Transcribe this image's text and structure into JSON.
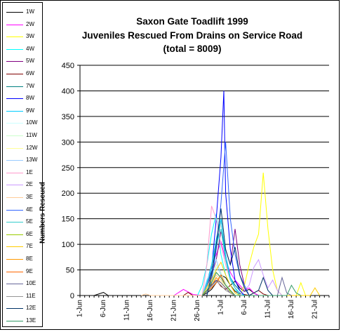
{
  "chart_data": {
    "type": "line",
    "title_lines": [
      "Saxon Gate Toadlift 1999",
      "Juveniles Rescued  From Drains on Service Road",
      "(total = 8009)"
    ],
    "xlabel": "",
    "ylabel": "Numbers Rescued",
    "ylim": [
      0,
      450
    ],
    "yticks": [
      0,
      50,
      100,
      150,
      200,
      250,
      300,
      350,
      400,
      450
    ],
    "x_tick_labels": [
      "1-Jun",
      "6-Jun",
      "11-Jun",
      "16-Jun",
      "21-Jun",
      "26-Jun",
      "1-Jul",
      "6-Jul",
      "11-Jul",
      "16-Jul",
      "21-Jul"
    ],
    "x_range_days": [
      0,
      53
    ],
    "grid": "horizontal",
    "legend_position": "left",
    "series": [
      {
        "name": "1W",
        "color": "#000000",
        "points": [
          [
            0,
            0
          ],
          [
            3,
            0
          ],
          [
            5,
            6
          ],
          [
            6,
            0
          ],
          [
            26,
            0
          ],
          [
            27,
            5
          ],
          [
            28,
            12
          ],
          [
            29,
            25
          ],
          [
            30,
            40
          ],
          [
            31,
            35
          ],
          [
            32,
            20
          ],
          [
            33,
            28
          ],
          [
            34,
            15
          ],
          [
            35,
            8
          ],
          [
            36,
            12
          ],
          [
            37,
            5
          ],
          [
            38,
            0
          ]
        ]
      },
      {
        "name": "2W",
        "color": "#ff00ff",
        "points": [
          [
            20,
            0
          ],
          [
            22,
            12
          ],
          [
            24,
            2
          ],
          [
            26,
            0
          ],
          [
            27,
            25
          ],
          [
            28,
            60
          ],
          [
            29,
            80
          ],
          [
            30,
            105
          ],
          [
            31,
            70
          ],
          [
            32,
            45
          ],
          [
            33,
            30
          ],
          [
            34,
            20
          ],
          [
            35,
            10
          ],
          [
            36,
            15
          ],
          [
            37,
            5
          ],
          [
            38,
            0
          ]
        ]
      },
      {
        "name": "3W",
        "color": "#ffff00",
        "points": [
          [
            34,
            0
          ],
          [
            35,
            20
          ],
          [
            36,
            60
          ],
          [
            37,
            95
          ],
          [
            38,
            120
          ],
          [
            39,
            240
          ],
          [
            40,
            130
          ],
          [
            41,
            50
          ],
          [
            42,
            10
          ],
          [
            43,
            0
          ],
          [
            46,
            0
          ],
          [
            47,
            25
          ],
          [
            48,
            0
          ]
        ]
      },
      {
        "name": "4W",
        "color": "#00ffff",
        "points": [
          [
            25,
            0
          ],
          [
            26,
            20
          ],
          [
            27,
            60
          ],
          [
            28,
            120
          ],
          [
            29,
            160
          ],
          [
            30,
            80
          ],
          [
            31,
            40
          ],
          [
            32,
            20
          ],
          [
            33,
            10
          ],
          [
            34,
            0
          ]
        ]
      },
      {
        "name": "5W",
        "color": "#800080",
        "points": [
          [
            26,
            0
          ],
          [
            27,
            15
          ],
          [
            28,
            40
          ],
          [
            29,
            70
          ],
          [
            30,
            125
          ],
          [
            31,
            90
          ],
          [
            32,
            60
          ],
          [
            33,
            130
          ],
          [
            34,
            60
          ],
          [
            35,
            20
          ],
          [
            36,
            0
          ]
        ]
      },
      {
        "name": "6W",
        "color": "#800000",
        "points": [
          [
            22,
            0
          ],
          [
            23,
            6
          ],
          [
            24,
            0
          ],
          [
            26,
            0
          ],
          [
            27,
            10
          ],
          [
            28,
            22
          ],
          [
            29,
            30
          ],
          [
            30,
            18
          ],
          [
            31,
            12
          ],
          [
            32,
            20
          ],
          [
            33,
            8
          ],
          [
            34,
            4
          ],
          [
            36,
            0
          ],
          [
            38,
            10
          ],
          [
            39,
            3
          ],
          [
            40,
            0
          ]
        ]
      },
      {
        "name": "7W",
        "color": "#008080",
        "points": [
          [
            26,
            0
          ],
          [
            27,
            20
          ],
          [
            28,
            45
          ],
          [
            29,
            90
          ],
          [
            30,
            150
          ],
          [
            31,
            70
          ],
          [
            32,
            35
          ],
          [
            33,
            20
          ],
          [
            34,
            10
          ],
          [
            35,
            0
          ]
        ]
      },
      {
        "name": "8W",
        "color": "#0000ff",
        "points": [
          [
            26,
            0
          ],
          [
            27,
            20
          ],
          [
            28,
            50
          ],
          [
            29,
            150
          ],
          [
            30,
            270
          ],
          [
            30.6,
            400
          ],
          [
            31,
            200
          ],
          [
            32,
            90
          ],
          [
            33,
            30
          ],
          [
            34,
            10
          ],
          [
            35,
            0
          ]
        ]
      },
      {
        "name": "9W",
        "color": "#00ccff",
        "points": [
          [
            26,
            0
          ],
          [
            27,
            25
          ],
          [
            28,
            60
          ],
          [
            29,
            110
          ],
          [
            30,
            150
          ],
          [
            31,
            80
          ],
          [
            32,
            35
          ],
          [
            33,
            15
          ],
          [
            34,
            5
          ],
          [
            35,
            0
          ]
        ]
      },
      {
        "name": "10W",
        "color": "#ccffff",
        "points": [
          [
            26,
            0
          ],
          [
            27,
            10
          ],
          [
            28,
            30
          ],
          [
            29,
            55
          ],
          [
            30,
            40
          ],
          [
            31,
            20
          ],
          [
            32,
            10
          ],
          [
            33,
            0
          ]
        ]
      },
      {
        "name": "11W",
        "color": "#ccffcc",
        "points": [
          [
            26,
            0
          ],
          [
            27,
            15
          ],
          [
            28,
            35
          ],
          [
            29,
            60
          ],
          [
            30,
            45
          ],
          [
            31,
            25
          ],
          [
            32,
            10
          ],
          [
            33,
            0
          ]
        ]
      },
      {
        "name": "12W",
        "color": "#ffff99",
        "points": [
          [
            26,
            0
          ],
          [
            27,
            10
          ],
          [
            28,
            20
          ],
          [
            29,
            40
          ],
          [
            30,
            30
          ],
          [
            31,
            15
          ],
          [
            32,
            5
          ],
          [
            33,
            0
          ]
        ]
      },
      {
        "name": "13W",
        "color": "#99ccff",
        "points": [
          [
            26,
            0
          ],
          [
            27,
            30
          ],
          [
            28,
            50
          ],
          [
            29,
            70
          ],
          [
            30,
            40
          ],
          [
            31,
            20
          ],
          [
            32,
            10
          ],
          [
            33,
            0
          ]
        ]
      },
      {
        "name": "1E",
        "color": "#ff99cc",
        "points": [
          [
            26,
            0
          ],
          [
            27,
            60
          ],
          [
            28,
            175
          ],
          [
            29,
            150
          ],
          [
            30,
            100
          ],
          [
            31,
            60
          ],
          [
            32,
            30
          ],
          [
            33,
            15
          ],
          [
            34,
            0
          ]
        ]
      },
      {
        "name": "2E",
        "color": "#cc99ff",
        "points": [
          [
            34,
            0
          ],
          [
            36,
            20
          ],
          [
            37,
            55
          ],
          [
            38,
            70
          ],
          [
            39,
            40
          ],
          [
            40,
            15
          ],
          [
            41,
            30
          ],
          [
            42,
            10
          ],
          [
            43,
            0
          ]
        ]
      },
      {
        "name": "3E",
        "color": "#ffcc99",
        "points": [
          [
            13,
            0
          ],
          [
            14,
            3
          ],
          [
            15,
            0
          ],
          [
            26,
            0
          ],
          [
            27,
            10
          ],
          [
            28,
            25
          ],
          [
            29,
            40
          ],
          [
            30,
            30
          ],
          [
            31,
            20
          ],
          [
            32,
            10
          ],
          [
            33,
            0
          ]
        ]
      },
      {
        "name": "4E",
        "color": "#3366ff",
        "points": [
          [
            27,
            0
          ],
          [
            28,
            30
          ],
          [
            29,
            90
          ],
          [
            30,
            180
          ],
          [
            31,
            300
          ],
          [
            32,
            150
          ],
          [
            33,
            80
          ],
          [
            34,
            40
          ],
          [
            35,
            20
          ],
          [
            36,
            0
          ]
        ]
      },
      {
        "name": "5E",
        "color": "#33cccc",
        "points": [
          [
            26,
            0
          ],
          [
            27,
            20
          ],
          [
            28,
            55
          ],
          [
            29,
            100
          ],
          [
            30,
            130
          ],
          [
            31,
            70
          ],
          [
            32,
            30
          ],
          [
            33,
            15
          ],
          [
            34,
            0
          ]
        ]
      },
      {
        "name": "6E",
        "color": "#99cc00",
        "points": [
          [
            26,
            0
          ],
          [
            27,
            10
          ],
          [
            28,
            25
          ],
          [
            29,
            45
          ],
          [
            30,
            35
          ],
          [
            31,
            20
          ],
          [
            32,
            8
          ],
          [
            33,
            0
          ]
        ]
      },
      {
        "name": "7E",
        "color": "#ffcc00",
        "points": [
          [
            26,
            0
          ],
          [
            27,
            15
          ],
          [
            28,
            30
          ],
          [
            29,
            50
          ],
          [
            30,
            65
          ],
          [
            31,
            40
          ],
          [
            32,
            20
          ],
          [
            33,
            5
          ],
          [
            34,
            0
          ],
          [
            49,
            0
          ],
          [
            50,
            15
          ],
          [
            51,
            0
          ]
        ]
      },
      {
        "name": "8E",
        "color": "#ff9900",
        "points": [
          [
            26,
            0
          ],
          [
            27,
            10
          ],
          [
            28,
            20
          ],
          [
            29,
            35
          ],
          [
            30,
            25
          ],
          [
            31,
            15
          ],
          [
            32,
            5
          ],
          [
            33,
            0
          ]
        ]
      },
      {
        "name": "9E",
        "color": "#ff6600",
        "points": [
          [
            26,
            0
          ],
          [
            27,
            8
          ],
          [
            28,
            15
          ],
          [
            29,
            25
          ],
          [
            30,
            40
          ],
          [
            31,
            20
          ],
          [
            32,
            10
          ],
          [
            33,
            0
          ]
        ]
      },
      {
        "name": "10E",
        "color": "#666699",
        "points": [
          [
            26,
            0
          ],
          [
            27,
            10
          ],
          [
            28,
            20
          ],
          [
            29,
            30
          ],
          [
            30,
            25
          ],
          [
            31,
            15
          ],
          [
            32,
            5
          ],
          [
            33,
            0
          ],
          [
            42,
            0
          ],
          [
            43,
            35
          ],
          [
            44,
            5
          ],
          [
            45,
            0
          ]
        ]
      },
      {
        "name": "11E",
        "color": "#969696",
        "points": [
          [
            26,
            0
          ],
          [
            27,
            8
          ],
          [
            28,
            18
          ],
          [
            29,
            28
          ],
          [
            30,
            20
          ],
          [
            31,
            10
          ],
          [
            32,
            5
          ],
          [
            33,
            0
          ]
        ]
      },
      {
        "name": "12E",
        "color": "#003366",
        "points": [
          [
            27,
            0
          ],
          [
            28,
            40
          ],
          [
            29,
            100
          ],
          [
            30,
            170
          ],
          [
            31,
            90
          ],
          [
            32,
            60
          ],
          [
            33,
            95
          ],
          [
            34,
            40
          ],
          [
            35,
            15
          ],
          [
            36,
            0
          ],
          [
            38,
            10
          ],
          [
            39,
            35
          ],
          [
            40,
            10
          ],
          [
            41,
            0
          ]
        ]
      },
      {
        "name": "13E",
        "color": "#339966",
        "points": [
          [
            26,
            0
          ],
          [
            27,
            10
          ],
          [
            28,
            25
          ],
          [
            29,
            45
          ],
          [
            30,
            35
          ],
          [
            31,
            20
          ],
          [
            32,
            10
          ],
          [
            33,
            0
          ],
          [
            44,
            0
          ],
          [
            45,
            20
          ],
          [
            46,
            5
          ],
          [
            47,
            0
          ]
        ]
      }
    ]
  }
}
